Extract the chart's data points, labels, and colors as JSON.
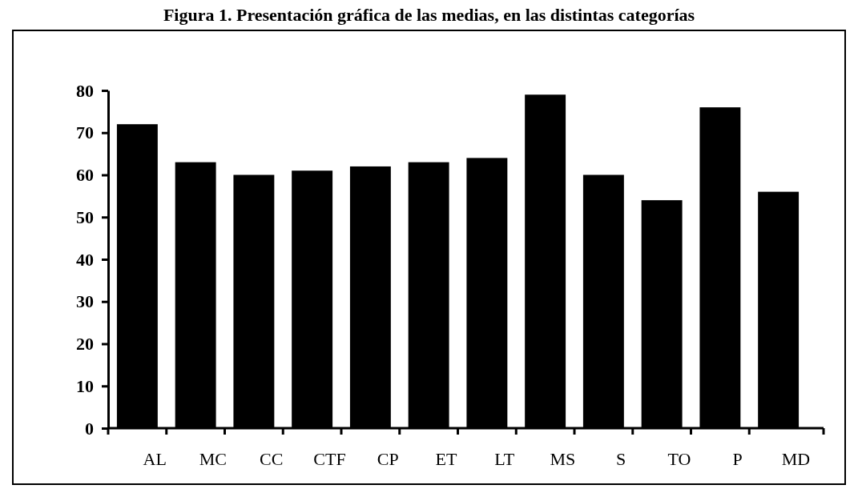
{
  "chart_data": {
    "type": "bar",
    "title": "Figura 1. Presentación gráfica de las medias, en las distintas categorías",
    "categories": [
      "AL",
      "MC",
      "CC",
      "CTF",
      "CP",
      "ET",
      "LT",
      "MS",
      "S",
      "TO",
      "P",
      "MD"
    ],
    "values": [
      72,
      63,
      60,
      61,
      62,
      63,
      64,
      79,
      60,
      54,
      76,
      56
    ],
    "color": "#000000",
    "ylim": [
      0,
      80
    ],
    "yticks": [
      0,
      10,
      20,
      30,
      40,
      50,
      60,
      70,
      80
    ],
    "grid": false
  }
}
